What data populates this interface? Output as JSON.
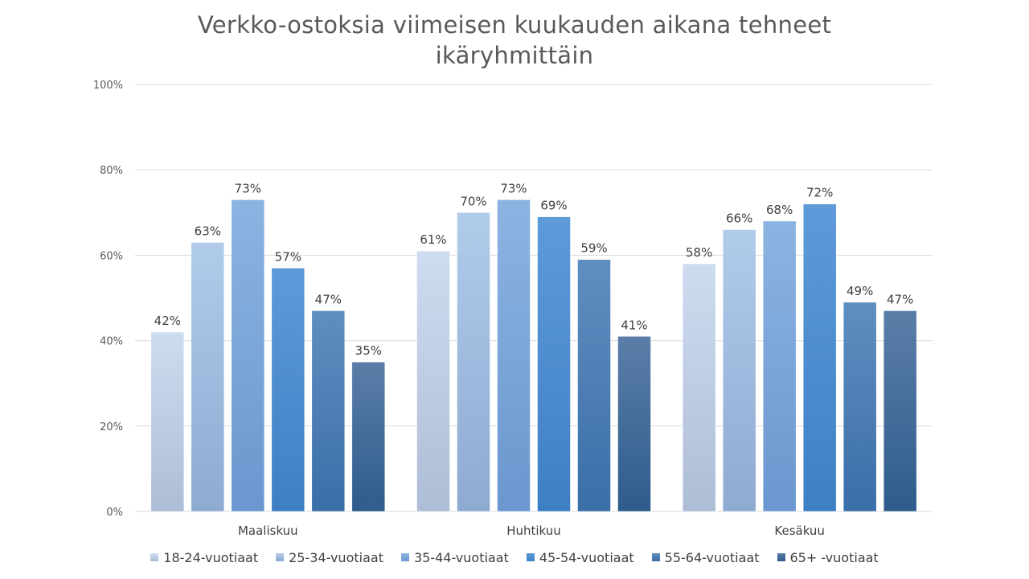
{
  "title": {
    "line1": "Verkko-ostoksia viimeisen kuukauden aikana tehneet",
    "line2": "ikäryhmittäin"
  },
  "chart_data": {
    "type": "bar",
    "title": "Verkko-ostoksia viimeisen kuukauden aikana tehneet ikäryhmittäin",
    "categories": [
      "Maaliskuu",
      "Huhtikuu",
      "Kesäkuu"
    ],
    "ylim": [
      0,
      100
    ],
    "yticks": [
      "0%",
      "20%",
      "40%",
      "60%",
      "80%",
      "100%"
    ],
    "grid": true,
    "legend_position": "bottom",
    "series": [
      {
        "name": "18-24-vuotiaat",
        "values": [
          42,
          61,
          58
        ],
        "color_top": "#cddcf0",
        "color_bottom": "#aebdd6"
      },
      {
        "name": "25-34-vuotiaat",
        "values": [
          63,
          70,
          66
        ],
        "color_top": "#b1cbea",
        "color_bottom": "#8eaad2"
      },
      {
        "name": "35-44-vuotiaat",
        "values": [
          73,
          73,
          68
        ],
        "color_top": "#8cb4e2",
        "color_bottom": "#6a97cf"
      },
      {
        "name": "45-54-vuotiaat",
        "values": [
          57,
          69,
          72
        ],
        "color_top": "#5d9ad9",
        "color_bottom": "#3e7fc4"
      },
      {
        "name": "55-64-vuotiaat",
        "values": [
          47,
          59,
          49
        ],
        "color_top": "#5f8ec0",
        "color_bottom": "#3a6ea8"
      },
      {
        "name": "65+ -vuotiaat",
        "values": [
          35,
          41,
          47
        ],
        "color_top": "#5b7ea8",
        "color_bottom": "#2e5c8c"
      }
    ]
  }
}
